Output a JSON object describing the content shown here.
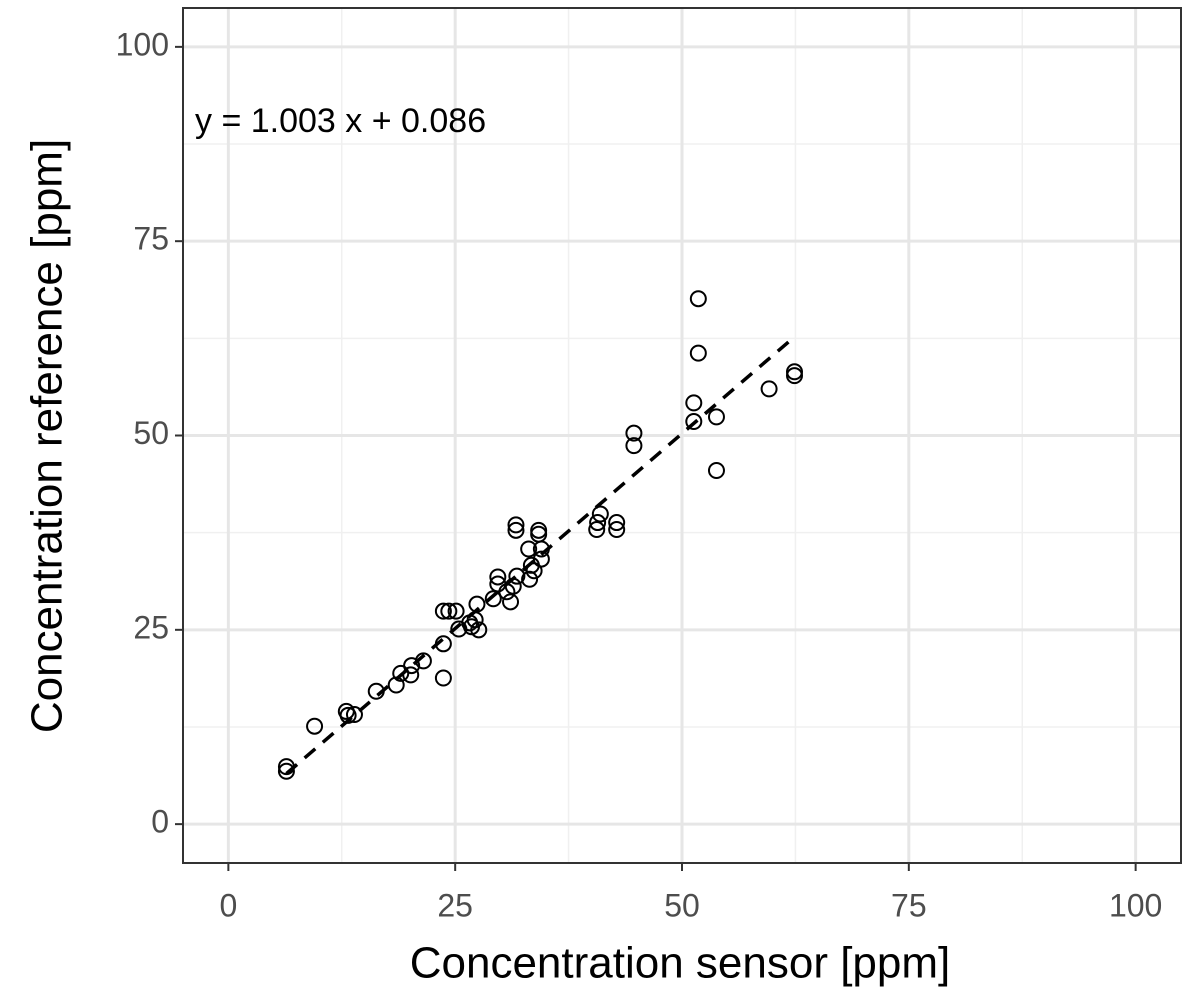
{
  "chart_data": {
    "type": "scatter",
    "xlabel": "Concentration sensor [ppm]",
    "ylabel": "Concentration reference [ppm]",
    "annotation": "y = 1.003 x + 0.086",
    "xlim": [
      -5,
      105
    ],
    "ylim": [
      -5,
      105
    ],
    "xticks": [
      0,
      25,
      50,
      75,
      100
    ],
    "yticks": [
      0,
      25,
      50,
      75,
      100
    ],
    "grid": true,
    "color": "#000000",
    "x": [
      6.4,
      6.4,
      9.5,
      13.0,
      13.2,
      13.9,
      16.3,
      18.5,
      19.0,
      20.1,
      20.2,
      21.5,
      23.7,
      23.7,
      23.7,
      24.3,
      25.1,
      25.4,
      26.6,
      26.8,
      27.2,
      27.6,
      27.4,
      29.2,
      29.7,
      29.7,
      30.7,
      31.1,
      31.4,
      31.8,
      31.7,
      31.7,
      33.1,
      33.2,
      33.4,
      33.7,
      34.2,
      34.2,
      34.5,
      34.5,
      40.6,
      40.7,
      41.0,
      42.8,
      42.8,
      44.7,
      44.7,
      51.3,
      51.3,
      51.8,
      51.8,
      53.8,
      53.8,
      59.6,
      62.4,
      62.4
    ],
    "values": [
      7.4,
      6.8,
      12.6,
      14.5,
      14.0,
      14.1,
      17.1,
      17.9,
      19.4,
      19.2,
      20.4,
      21.0,
      18.8,
      23.2,
      27.4,
      27.4,
      27.4,
      25.1,
      25.9,
      25.4,
      26.3,
      25.0,
      28.3,
      29.0,
      31.8,
      30.9,
      29.9,
      28.6,
      30.6,
      31.9,
      38.5,
      37.8,
      35.4,
      31.5,
      33.3,
      32.6,
      37.3,
      37.8,
      35.4,
      34.1,
      37.9,
      38.8,
      39.9,
      38.8,
      37.9,
      50.3,
      48.7,
      54.2,
      51.8,
      67.6,
      60.6,
      52.4,
      45.5,
      56.0,
      58.2,
      57.7
    ],
    "fit_line": {
      "x": [
        6.4,
        62.4
      ],
      "values": [
        6.5,
        62.7
      ]
    }
  }
}
